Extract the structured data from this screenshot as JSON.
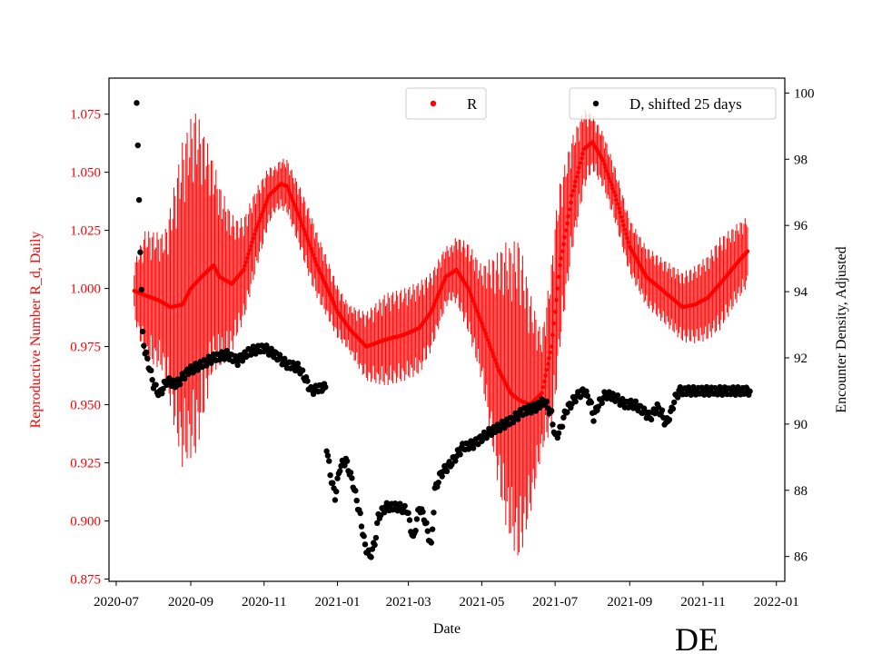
{
  "colors": {
    "r_series": "#ff0000",
    "d_series": "#000000",
    "left_axis": "#ff0000",
    "right_axis": "#000000"
  },
  "region_label": "DE",
  "chart_data": {
    "type": "scatter",
    "title": "",
    "xlabel": "Date",
    "ylabel_left": "Reproductive Number R_d, Daily",
    "ylabel_right": "Encounter Density, Adjusted",
    "x_range": [
      "2020-06-25",
      "2022-01-08"
    ],
    "ylim_left": [
      0.874,
      1.0905
    ],
    "ylim_right": [
      85.25,
      100.45
    ],
    "grid": false,
    "x_ticks": [
      "2020-07",
      "2020-09",
      "2020-11",
      "2021-01",
      "2021-03",
      "2021-05",
      "2021-07",
      "2021-09",
      "2021-11",
      "2022-01"
    ],
    "y_ticks_left": [
      0.875,
      0.9,
      0.925,
      0.95,
      0.975,
      1.0,
      1.025,
      1.05,
      1.075
    ],
    "y_ticks_right": [
      86,
      88,
      90,
      92,
      94,
      96,
      98,
      100
    ],
    "legend": [
      {
        "name": "R",
        "position": "upper-center"
      },
      {
        "name": "D, shifted 25 days",
        "position": "upper-right"
      }
    ],
    "series": [
      {
        "name": "R",
        "axis": "left",
        "marker": "dot with error bars",
        "start_date": "2020-07-16",
        "end_date": "2021-12-08",
        "center_keypoints": [
          [
            "2020-07-16",
            0.999
          ],
          [
            "2020-07-25",
            0.997
          ],
          [
            "2020-08-05",
            0.995
          ],
          [
            "2020-08-15",
            0.992
          ],
          [
            "2020-08-25",
            0.993
          ],
          [
            "2020-09-01",
            1.0
          ],
          [
            "2020-09-10",
            1.005
          ],
          [
            "2020-09-20",
            1.01
          ],
          [
            "2020-09-25",
            1.005
          ],
          [
            "2020-10-05",
            1.002
          ],
          [
            "2020-10-15",
            1.008
          ],
          [
            "2020-10-25",
            1.025
          ],
          [
            "2020-11-05",
            1.04
          ],
          [
            "2020-11-15",
            1.045
          ],
          [
            "2020-11-20",
            1.044
          ],
          [
            "2020-12-01",
            1.03
          ],
          [
            "2020-12-15",
            1.01
          ],
          [
            "2021-01-01",
            0.99
          ],
          [
            "2021-01-12",
            0.982
          ],
          [
            "2021-01-25",
            0.975
          ],
          [
            "2021-02-10",
            0.978
          ],
          [
            "2021-02-25",
            0.98
          ],
          [
            "2021-03-10",
            0.983
          ],
          [
            "2021-03-20",
            0.99
          ],
          [
            "2021-04-01",
            1.005
          ],
          [
            "2021-04-10",
            1.008
          ],
          [
            "2021-04-20",
            1.0
          ],
          [
            "2021-05-01",
            0.985
          ],
          [
            "2021-05-15",
            0.965
          ],
          [
            "2021-05-25",
            0.955
          ],
          [
            "2021-06-01",
            0.952
          ],
          [
            "2021-06-10",
            0.95
          ],
          [
            "2021-06-20",
            0.955
          ],
          [
            "2021-06-28",
            0.975
          ],
          [
            "2021-07-05",
            1.01
          ],
          [
            "2021-07-15",
            1.04
          ],
          [
            "2021-07-25",
            1.06
          ],
          [
            "2021-08-01",
            1.063
          ],
          [
            "2021-08-10",
            1.055
          ],
          [
            "2021-08-20",
            1.04
          ],
          [
            "2021-09-01",
            1.018
          ],
          [
            "2021-09-15",
            1.005
          ],
          [
            "2021-10-01",
            0.998
          ],
          [
            "2021-10-15",
            0.992
          ],
          [
            "2021-10-25",
            0.993
          ],
          [
            "2021-11-05",
            0.996
          ],
          [
            "2021-11-20",
            1.005
          ],
          [
            "2021-12-01",
            1.012
          ],
          [
            "2021-12-08",
            1.016
          ]
        ],
        "error_halfwidth_keypoints": [
          [
            "2020-07-16",
            0.012
          ],
          [
            "2020-07-25",
            0.028
          ],
          [
            "2020-08-10",
            0.03
          ],
          [
            "2020-08-25",
            0.07
          ],
          [
            "2020-09-05",
            0.075
          ],
          [
            "2020-09-20",
            0.045
          ],
          [
            "2020-10-10",
            0.025
          ],
          [
            "2020-11-10",
            0.01
          ],
          [
            "2020-12-10",
            0.015
          ],
          [
            "2021-01-10",
            0.01
          ],
          [
            "2021-02-10",
            0.02
          ],
          [
            "2021-03-10",
            0.02
          ],
          [
            "2021-04-05",
            0.012
          ],
          [
            "2021-05-01",
            0.025
          ],
          [
            "2021-05-20",
            0.06
          ],
          [
            "2021-06-01",
            0.07
          ],
          [
            "2021-06-20",
            0.025
          ],
          [
            "2021-07-01",
            0.04
          ],
          [
            "2021-07-15",
            0.025
          ],
          [
            "2021-08-01",
            0.012
          ],
          [
            "2021-09-01",
            0.012
          ],
          [
            "2021-10-15",
            0.015
          ],
          [
            "2021-11-15",
            0.02
          ],
          [
            "2021-12-08",
            0.015
          ]
        ]
      },
      {
        "name": "D, shifted 25 days",
        "axis": "right",
        "marker": "dot",
        "keypoints": [
          [
            "2020-07-18",
            99.7
          ],
          [
            "2020-07-19",
            98.3
          ],
          [
            "2020-07-20",
            96.8
          ],
          [
            "2020-07-21",
            95.3
          ],
          [
            "2020-07-22",
            94.0
          ],
          [
            "2020-07-23",
            92.7
          ],
          [
            "2020-07-25",
            92.2
          ],
          [
            "2020-07-28",
            91.8
          ],
          [
            "2020-08-01",
            91.2
          ],
          [
            "2020-08-06",
            90.9
          ],
          [
            "2020-08-12",
            91.3
          ],
          [
            "2020-08-20",
            91.2
          ],
          [
            "2020-08-30",
            91.6
          ],
          [
            "2020-09-10",
            91.8
          ],
          [
            "2020-09-20",
            92.0
          ],
          [
            "2020-10-01",
            92.1
          ],
          [
            "2020-10-10",
            91.9
          ],
          [
            "2020-10-20",
            92.2
          ],
          [
            "2020-11-01",
            92.3
          ],
          [
            "2020-11-10",
            92.1
          ],
          [
            "2020-11-20",
            91.8
          ],
          [
            "2020-11-30",
            91.7
          ],
          [
            "2020-12-05",
            91.4
          ],
          [
            "2020-12-10",
            91.0
          ],
          [
            "2020-12-18",
            91.1
          ],
          [
            "2020-12-22",
            91.1
          ],
          [
            "2020-12-23",
            89.3
          ],
          [
            "2020-12-26",
            88.5
          ],
          [
            "2020-12-30",
            87.8
          ],
          [
            "2021-01-03",
            88.7
          ],
          [
            "2021-01-08",
            88.9
          ],
          [
            "2021-01-14",
            88.2
          ],
          [
            "2021-01-20",
            87.2
          ],
          [
            "2021-01-24",
            86.3
          ],
          [
            "2021-01-28",
            86.0
          ],
          [
            "2021-02-01",
            86.4
          ],
          [
            "2021-02-04",
            87.2
          ],
          [
            "2021-02-10",
            87.5
          ],
          [
            "2021-02-20",
            87.5
          ],
          [
            "2021-02-28",
            87.4
          ],
          [
            "2021-03-05",
            86.5
          ],
          [
            "2021-03-10",
            87.5
          ],
          [
            "2021-03-14",
            87.2
          ],
          [
            "2021-03-20",
            86.3
          ],
          [
            "2021-03-23",
            88.0
          ],
          [
            "2021-03-28",
            88.5
          ],
          [
            "2021-04-05",
            88.8
          ],
          [
            "2021-04-15",
            89.3
          ],
          [
            "2021-04-25",
            89.4
          ],
          [
            "2021-05-05",
            89.7
          ],
          [
            "2021-05-15",
            89.9
          ],
          [
            "2021-05-25",
            90.1
          ],
          [
            "2021-06-05",
            90.4
          ],
          [
            "2021-06-15",
            90.5
          ],
          [
            "2021-06-22",
            90.7
          ],
          [
            "2021-06-28",
            90.3
          ],
          [
            "2021-07-01",
            89.6
          ],
          [
            "2021-07-05",
            89.8
          ],
          [
            "2021-07-10",
            90.4
          ],
          [
            "2021-07-18",
            90.8
          ],
          [
            "2021-07-25",
            91.0
          ],
          [
            "2021-07-30",
            90.7
          ],
          [
            "2021-08-02",
            90.2
          ],
          [
            "2021-08-06",
            90.6
          ],
          [
            "2021-08-12",
            90.9
          ],
          [
            "2021-08-20",
            90.8
          ],
          [
            "2021-08-28",
            90.6
          ],
          [
            "2021-09-05",
            90.6
          ],
          [
            "2021-09-12",
            90.4
          ],
          [
            "2021-09-18",
            90.2
          ],
          [
            "2021-09-24",
            90.5
          ],
          [
            "2021-09-28",
            90.3
          ],
          [
            "2021-10-01",
            90.0
          ],
          [
            "2021-10-05",
            90.3
          ],
          [
            "2021-10-08",
            90.7
          ],
          [
            "2021-10-12",
            91.0
          ],
          [
            "2021-10-16",
            91.0
          ],
          [
            "2021-11-15",
            91.0
          ],
          [
            "2021-12-10",
            91.0
          ]
        ]
      }
    ]
  }
}
